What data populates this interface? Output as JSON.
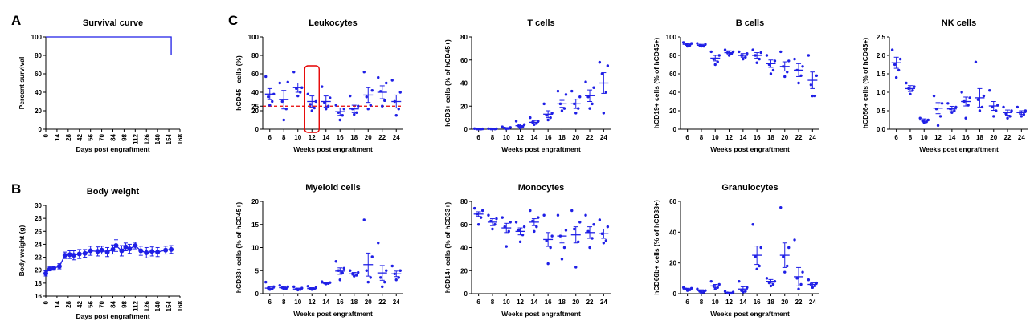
{
  "panel_letters": [
    "A",
    "B",
    "C"
  ],
  "colors": {
    "series": "#1f1fe6",
    "threshold": "#e60000",
    "highlight": "#e60000",
    "axis": "#000000"
  },
  "chart_data": [
    {
      "id": "survival",
      "type": "line",
      "title": "Survival curve",
      "xlabel": "Days post engraftment",
      "ylabel": "Percent survival",
      "xlim": [
        0,
        168
      ],
      "ylim": [
        0,
        100
      ],
      "xticks": [
        0,
        14,
        28,
        42,
        56,
        70,
        84,
        98,
        112,
        126,
        140,
        154,
        168
      ],
      "yticks": [
        0,
        20,
        40,
        60,
        80,
        100
      ],
      "step_points": [
        [
          0,
          100
        ],
        [
          157,
          100
        ],
        [
          157,
          80
        ]
      ]
    },
    {
      "id": "bodyweight",
      "type": "line",
      "title": "Body weight",
      "xlabel": "Days post engraftment",
      "ylabel": "Body weight (g)",
      "xlim": [
        0,
        168
      ],
      "ylim": [
        16,
        30
      ],
      "xticks": [
        0,
        14,
        28,
        42,
        56,
        70,
        84,
        98,
        112,
        126,
        140,
        154,
        168
      ],
      "yticks": [
        16,
        18,
        20,
        22,
        24,
        26,
        28,
        30
      ],
      "x": [
        0,
        5,
        10,
        17,
        24,
        30,
        35,
        42,
        49,
        56,
        65,
        70,
        77,
        84,
        88,
        95,
        100,
        105,
        112,
        119,
        126,
        133,
        140,
        150,
        157
      ],
      "mean": [
        19.5,
        20.2,
        20.3,
        20.6,
        22.3,
        22.4,
        22.3,
        22.5,
        22.6,
        23.0,
        22.9,
        23.1,
        22.8,
        23.2,
        23.8,
        23.0,
        23.6,
        23.3,
        23.8,
        23.0,
        22.7,
        22.9,
        22.8,
        23.1,
        23.2
      ],
      "err": [
        0.4,
        0.3,
        0.3,
        0.4,
        0.5,
        0.6,
        0.7,
        0.7,
        0.6,
        0.7,
        0.7,
        0.6,
        0.7,
        0.7,
        0.9,
        0.8,
        0.6,
        0.7,
        0.5,
        0.7,
        0.8,
        0.7,
        0.7,
        0.6,
        0.6
      ]
    },
    {
      "id": "leukocytes",
      "type": "scatter",
      "title": "Leukocytes",
      "xlabel": "Weeks post engraftment",
      "ylabel": "hCD45+ cells (%)",
      "categories": [
        "6",
        "8",
        "10",
        "12",
        "14",
        "16",
        "18",
        "20",
        "22",
        "24"
      ],
      "ylim": [
        0,
        100
      ],
      "yticks": [
        0,
        20,
        40,
        60,
        80,
        100
      ],
      "extra_ytick": {
        "value": 25,
        "label": "25"
      },
      "threshold": 25,
      "highlight_category": "12",
      "points": [
        [
          57,
          38,
          35,
          30,
          26
        ],
        [
          50,
          51,
          30,
          22,
          10
        ],
        [
          62,
          45,
          44,
          40,
          36
        ],
        [
          38,
          30,
          27,
          23,
          20
        ],
        [
          46,
          34,
          29,
          25,
          22
        ],
        [
          26,
          22,
          18,
          15,
          10
        ],
        [
          36,
          25,
          22,
          18,
          16
        ],
        [
          62,
          42,
          35,
          26,
          22
        ],
        [
          56,
          50,
          41,
          31,
          25
        ],
        [
          53,
          40,
          30,
          22,
          15
        ]
      ],
      "mean": [
        38,
        32,
        45,
        30,
        30,
        19,
        22,
        37,
        40,
        30
      ],
      "err": [
        6,
        10,
        5,
        6,
        6,
        4,
        4,
        8,
        7,
        7
      ]
    },
    {
      "id": "tcells",
      "type": "scatter",
      "title": "T cells",
      "xlabel": "Weeks post engraftment",
      "ylabel": "hCD3+ cells (% of hCD45+)",
      "categories": [
        "6",
        "8",
        "10",
        "12",
        "14",
        "16",
        "18",
        "20",
        "22",
        "24"
      ],
      "ylim": [
        0,
        80
      ],
      "yticks": [
        0,
        20,
        40,
        60,
        80
      ],
      "points": [
        [
          0.5,
          0.3,
          0.2,
          0.1,
          0.1
        ],
        [
          0.5,
          0.4,
          0.3,
          0.2,
          0.1
        ],
        [
          2,
          1.5,
          1,
          0.5,
          0.3
        ],
        [
          7,
          4,
          3,
          2,
          1
        ],
        [
          10,
          7,
          6,
          5,
          4
        ],
        [
          22,
          14,
          12,
          10,
          8
        ],
        [
          33,
          30,
          22,
          18,
          16
        ],
        [
          33,
          28,
          22,
          18,
          14
        ],
        [
          41,
          36,
          28,
          22,
          18
        ],
        [
          58,
          55,
          48,
          32,
          14
        ]
      ],
      "mean": [
        0.2,
        0.3,
        1,
        3,
        6,
        13,
        22,
        22,
        29,
        40
      ],
      "err": [
        0.1,
        0.1,
        0.4,
        1.5,
        1.5,
        3,
        3,
        4,
        5,
        9
      ]
    },
    {
      "id": "bcells",
      "type": "scatter",
      "title": "B cells",
      "xlabel": "Weeks post engraftment",
      "ylabel": "hCD19+ cells (% of hCD45+)",
      "categories": [
        "6",
        "8",
        "10",
        "12",
        "14",
        "16",
        "18",
        "20",
        "22",
        "24"
      ],
      "ylim": [
        0,
        100
      ],
      "yticks": [
        0,
        20,
        40,
        60,
        80,
        100
      ],
      "points": [
        [
          94,
          93,
          92,
          91,
          90
        ],
        [
          93,
          92,
          91,
          90,
          90
        ],
        [
          84,
          80,
          76,
          73,
          70
        ],
        [
          86,
          84,
          83,
          82,
          80
        ],
        [
          84,
          82,
          80,
          78,
          76
        ],
        [
          86,
          83,
          80,
          76,
          72
        ],
        [
          80,
          74,
          70,
          64,
          60
        ],
        [
          84,
          74,
          68,
          62,
          57
        ],
        [
          76,
          68,
          64,
          58,
          50
        ],
        [
          80,
          58,
          48,
          36,
          36
        ]
      ],
      "mean": [
        92,
        91,
        77,
        83,
        80,
        80,
        71,
        68,
        64,
        53
      ],
      "err": [
        1,
        1,
        3,
        2,
        2,
        3,
        4,
        5,
        7,
        9
      ]
    },
    {
      "id": "nkcells",
      "type": "scatter",
      "title": "NK cells",
      "xlabel": "Weeks post engraftment",
      "ylabel": "hCD56+ cells (% of hCD45+)",
      "categories": [
        "6",
        "8",
        "10",
        "12",
        "14",
        "16",
        "18",
        "20",
        "22",
        "24"
      ],
      "ylim": [
        0,
        2.5
      ],
      "yticks": [
        "0.0",
        "0.5",
        "1.0",
        "1.5",
        "2.0",
        "2.5"
      ],
      "points": [
        [
          2.15,
          1.9,
          1.75,
          1.6,
          1.4
        ],
        [
          1.25,
          1.15,
          1.1,
          1.05,
          0.95
        ],
        [
          0.3,
          0.25,
          0.22,
          0.2,
          0.18
        ],
        [
          0.9,
          0.7,
          0.55,
          0.35,
          0.1
        ],
        [
          0.7,
          0.6,
          0.55,
          0.5,
          0.45
        ],
        [
          1.0,
          0.85,
          0.75,
          0.65,
          0.3
        ],
        [
          1.82,
          0.9,
          0.8,
          0.6,
          0.5
        ],
        [
          1.05,
          0.65,
          0.6,
          0.5,
          0.35
        ],
        [
          0.6,
          0.5,
          0.42,
          0.35,
          0.3
        ],
        [
          0.6,
          0.5,
          0.45,
          0.4,
          0.35
        ]
      ],
      "mean": [
        1.8,
        1.1,
        0.25,
        0.57,
        0.55,
        0.75,
        0.85,
        0.63,
        0.45,
        0.45
      ],
      "err": [
        0.15,
        0.08,
        0.03,
        0.15,
        0.07,
        0.12,
        0.25,
        0.12,
        0.07,
        0.05
      ]
    },
    {
      "id": "myeloid",
      "type": "scatter",
      "title": "Myeloid cells",
      "xlabel": "Weeks post engraftment",
      "ylabel": "hCD33+ cells (% of hCD45+)",
      "categories": [
        "6",
        "8",
        "10",
        "12",
        "14",
        "16",
        "18",
        "20",
        "22",
        "24"
      ],
      "ylim": [
        0,
        20
      ],
      "yticks": [
        0,
        5,
        10,
        15,
        20
      ],
      "points": [
        [
          2.5,
          1.5,
          1.2,
          1.0,
          0.9
        ],
        [
          1.8,
          1.5,
          1.3,
          1.1,
          1.0
        ],
        [
          1.5,
          1.2,
          1.0,
          0.9,
          0.8
        ],
        [
          1.6,
          1.3,
          1.1,
          1.0,
          0.9
        ],
        [
          2.6,
          2.4,
          2.3,
          2.2,
          2.1
        ],
        [
          7,
          5.5,
          5,
          4.5,
          3
        ],
        [
          5,
          4.6,
          4.3,
          4.0,
          3.8
        ],
        [
          16,
          8,
          5,
          3.5,
          2.5
        ],
        [
          11,
          5,
          3.5,
          2.5,
          1.5
        ],
        [
          6,
          5,
          4.3,
          3.5,
          3.0
        ]
      ],
      "mean": [
        1.2,
        1.3,
        1.0,
        1.1,
        2.3,
        4.9,
        4.3,
        6.3,
        4.5,
        4.3
      ],
      "err": [
        0.3,
        0.2,
        0.2,
        0.2,
        0.1,
        0.7,
        0.3,
        2.5,
        1.6,
        0.6
      ]
    },
    {
      "id": "monocytes",
      "type": "scatter",
      "title": "Monocytes",
      "xlabel": "Weeks post engraftment",
      "ylabel": "hCD14+ cells (% of hCD33+)",
      "categories": [
        "6",
        "8",
        "10",
        "12",
        "14",
        "16",
        "18",
        "20",
        "22",
        "24"
      ],
      "ylim": [
        0,
        80
      ],
      "yticks": [
        0,
        20,
        40,
        60,
        80
      ],
      "points": [
        [
          74,
          72,
          69,
          66,
          60
        ],
        [
          68,
          65,
          63,
          60,
          56
        ],
        [
          66,
          62,
          58,
          54,
          41
        ],
        [
          62,
          58,
          55,
          51,
          45
        ],
        [
          72,
          66,
          63,
          58,
          54
        ],
        [
          68,
          50,
          46,
          40,
          26
        ],
        [
          68,
          55,
          50,
          40,
          30
        ],
        [
          72,
          62,
          56,
          45,
          23
        ],
        [
          68,
          60,
          54,
          48,
          40
        ],
        [
          64,
          58,
          52,
          46,
          44
        ]
      ],
      "mean": [
        69,
        62,
        57,
        54,
        62,
        47,
        50,
        51,
        53,
        52
      ],
      "err": [
        2,
        3,
        4,
        3,
        3,
        6,
        6,
        7,
        5,
        4
      ]
    },
    {
      "id": "granulocytes",
      "type": "scatter",
      "title": "Granulocytes",
      "xlabel": "Weeks post engraftment",
      "ylabel": "hCD66b+ cells (% of hCD33+)",
      "categories": [
        "6",
        "8",
        "10",
        "12",
        "14",
        "16",
        "18",
        "20",
        "22",
        "24"
      ],
      "ylim": [
        0,
        60
      ],
      "yticks": [
        0,
        20,
        40,
        60
      ],
      "points": [
        [
          4,
          3.5,
          3,
          2.5,
          2
        ],
        [
          3,
          2,
          1.5,
          1,
          0.5
        ],
        [
          8,
          6,
          5,
          4,
          3
        ],
        [
          1.5,
          1,
          0.5,
          0.3,
          0.2
        ],
        [
          8,
          4,
          2,
          1.5,
          1
        ],
        [
          45,
          30,
          24,
          18,
          16
        ],
        [
          10,
          8,
          7,
          6,
          5
        ],
        [
          56,
          30,
          24,
          18,
          14
        ],
        [
          35,
          14,
          10,
          6,
          3
        ],
        [
          9,
          7,
          6,
          5,
          4
        ]
      ],
      "mean": [
        3,
        2,
        5,
        0.6,
        3,
        25,
        8,
        25,
        11,
        6
      ],
      "err": [
        0.5,
        0.5,
        1,
        0.3,
        1.5,
        6,
        1.2,
        8,
        6,
        1
      ]
    }
  ]
}
